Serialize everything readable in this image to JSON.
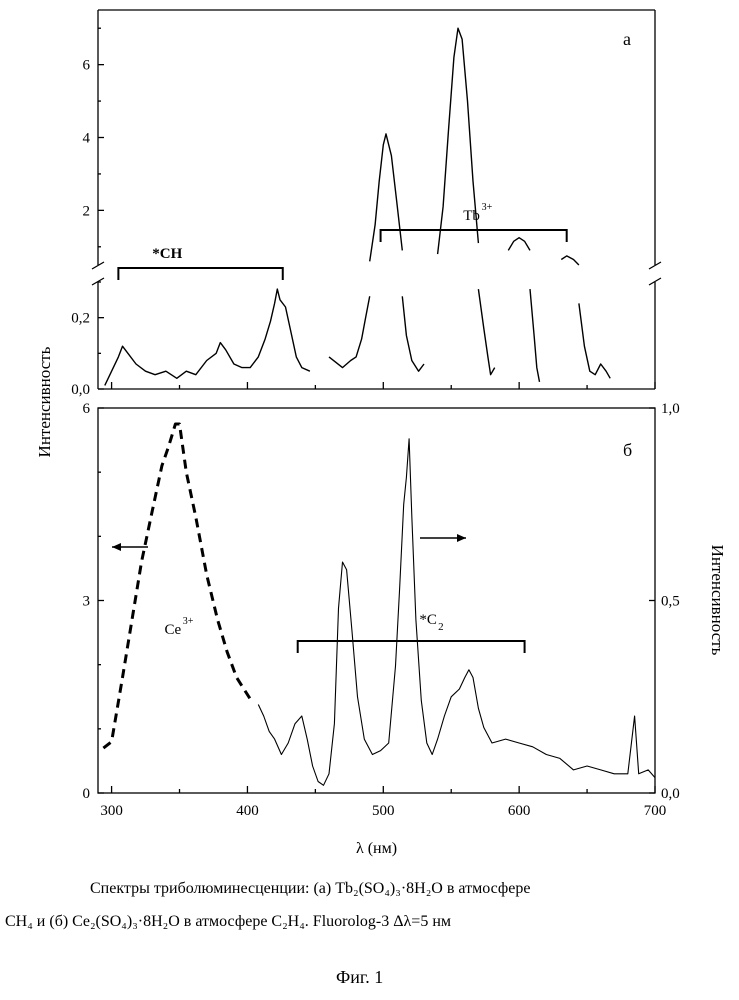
{
  "chart_data": [
    {
      "type": "line",
      "panel_label": "а",
      "xlim": [
        290,
        700
      ],
      "y_axis_break": true,
      "y_lower_range": [
        0.0,
        0.3
      ],
      "y_upper_range": [
        0.5,
        7.5
      ],
      "y_lower_ticks": [
        "0,0",
        "0,2"
      ],
      "y_upper_ticks": [
        "2",
        "4",
        "6"
      ],
      "series": [
        {
          "style": "solid",
          "segments": [
            [
              [
                295,
                0.01
              ],
              [
                300,
                0.05
              ],
              [
                305,
                0.09
              ],
              [
                308,
                0.12
              ],
              [
                312,
                0.1
              ],
              [
                318,
                0.07
              ],
              [
                325,
                0.05
              ],
              [
                332,
                0.04
              ],
              [
                340,
                0.05
              ],
              [
                348,
                0.03
              ],
              [
                355,
                0.05
              ],
              [
                362,
                0.04
              ],
              [
                370,
                0.08
              ],
              [
                377,
                0.1
              ],
              [
                380,
                0.13
              ],
              [
                384,
                0.11
              ],
              [
                390,
                0.07
              ],
              [
                396,
                0.06
              ],
              [
                402,
                0.06
              ],
              [
                408,
                0.09
              ],
              [
                413,
                0.14
              ],
              [
                417,
                0.19
              ],
              [
                420,
                0.24
              ],
              [
                422,
                0.28
              ],
              [
                424,
                0.25
              ],
              [
                428,
                0.23
              ],
              [
                432,
                0.16
              ],
              [
                436,
                0.09
              ],
              [
                440,
                0.06
              ],
              [
                446,
                0.05
              ]
            ],
            [
              [
                460,
                0.09
              ],
              [
                470,
                0.06
              ],
              [
                476,
                0.08
              ],
              [
                480,
                0.09
              ],
              [
                484,
                0.14
              ],
              [
                487,
                0.2
              ],
              [
                490,
                0.26
              ]
            ],
            [
              [
                490,
                0.6
              ],
              [
                494,
                1.6
              ],
              [
                497,
                2.8
              ],
              [
                500,
                3.8
              ],
              [
                502,
                4.1
              ],
              [
                506,
                3.5
              ],
              [
                510,
                2.2
              ],
              [
                514,
                0.9
              ]
            ],
            [
              [
                514,
                0.26
              ],
              [
                517,
                0.15
              ],
              [
                521,
                0.08
              ],
              [
                526,
                0.05
              ],
              [
                530,
                0.07
              ]
            ],
            [
              [
                540,
                0.8
              ],
              [
                544,
                2.1
              ],
              [
                548,
                4.2
              ],
              [
                552,
                6.2
              ],
              [
                555,
                7.0
              ],
              [
                558,
                6.7
              ],
              [
                562,
                5.0
              ],
              [
                566,
                2.8
              ],
              [
                570,
                1.1
              ]
            ],
            [
              [
                570,
                0.28
              ],
              [
                574,
                0.17
              ],
              [
                577,
                0.09
              ],
              [
                579,
                0.04
              ],
              [
                582,
                0.06
              ]
            ],
            [
              [
                592,
                0.9
              ],
              [
                596,
                1.15
              ],
              [
                600,
                1.25
              ],
              [
                604,
                1.15
              ],
              [
                608,
                0.9
              ]
            ],
            [
              [
                608,
                0.28
              ],
              [
                611,
                0.15
              ],
              [
                613,
                0.06
              ],
              [
                615,
                0.02
              ]
            ],
            [
              [
                631,
                0.65
              ],
              [
                635,
                0.75
              ],
              [
                640,
                0.65
              ],
              [
                644,
                0.35
              ]
            ],
            [
              [
                644,
                0.24
              ],
              [
                648,
                0.12
              ],
              [
                652,
                0.05
              ],
              [
                656,
                0.04
              ],
              [
                660,
                0.07
              ],
              [
                664,
                0.05
              ],
              [
                667,
                0.03
              ]
            ]
          ]
        }
      ],
      "annotations": [
        {
          "label_main": "*CH",
          "range": [
            305,
            426
          ]
        },
        {
          "label_main": "Tb",
          "label_sup": "3+",
          "range": [
            498,
            635
          ]
        }
      ]
    },
    {
      "type": "line",
      "panel_label": "б",
      "xlim": [
        290,
        700
      ],
      "xticks": [
        300,
        400,
        500,
        600,
        700
      ],
      "xlabel": "λ (нм)",
      "ylabel": "Интенсивность",
      "ylim_left": [
        0,
        6
      ],
      "yticks_left": [
        "0",
        "3",
        "6"
      ],
      "ylim_right": [
        0.0,
        1.0
      ],
      "yticks_right": [
        "0,0",
        "0,5",
        "1,0"
      ],
      "y2label": "Интенсивность",
      "series": [
        {
          "name": "Ce3+",
          "style": "dashed",
          "axis": "left",
          "points": [
            [
              294,
              0.7
            ],
            [
              300,
              0.8
            ],
            [
              308,
              1.8
            ],
            [
              315,
              2.7
            ],
            [
              322,
              3.6
            ],
            [
              330,
              4.4
            ],
            [
              337,
              5.1
            ],
            [
              342,
              5.4
            ],
            [
              347,
              5.75
            ],
            [
              350,
              5.75
            ],
            [
              355,
              5.0
            ],
            [
              362,
              4.3
            ],
            [
              370,
              3.4
            ],
            [
              378,
              2.7
            ],
            [
              385,
              2.2
            ],
            [
              392,
              1.8
            ],
            [
              398,
              1.6
            ],
            [
              404,
              1.4
            ]
          ]
        },
        {
          "name": "",
          "style": "solid",
          "axis": "right",
          "points": [
            [
              408,
              0.23
            ],
            [
              412,
              0.2
            ],
            [
              416,
              0.16
            ],
            [
              420,
              0.14
            ],
            [
              425,
              0.1
            ],
            [
              430,
              0.13
            ],
            [
              435,
              0.18
            ],
            [
              440,
              0.2
            ],
            [
              444,
              0.14
            ],
            [
              448,
              0.07
            ],
            [
              452,
              0.03
            ],
            [
              456,
              0.02
            ],
            [
              460,
              0.05
            ],
            [
              464,
              0.18
            ],
            [
              467,
              0.48
            ],
            [
              470,
              0.6
            ],
            [
              473,
              0.58
            ],
            [
              477,
              0.42
            ],
            [
              481,
              0.25
            ],
            [
              486,
              0.14
            ],
            [
              492,
              0.1
            ],
            [
              498,
              0.11
            ],
            [
              504,
              0.13
            ],
            [
              509,
              0.33
            ],
            [
              512,
              0.53
            ],
            [
              515,
              0.75
            ],
            [
              517,
              0.82
            ],
            [
              519,
              0.92
            ],
            [
              521,
              0.72
            ],
            [
              524,
              0.45
            ],
            [
              528,
              0.24
            ],
            [
              532,
              0.13
            ],
            [
              536,
              0.1
            ],
            [
              540,
              0.14
            ],
            [
              545,
              0.2
            ],
            [
              550,
              0.25
            ],
            [
              556,
              0.27
            ],
            [
              560,
              0.3
            ],
            [
              563,
              0.32
            ],
            [
              566,
              0.3
            ],
            [
              570,
              0.22
            ],
            [
              574,
              0.17
            ],
            [
              580,
              0.13
            ],
            [
              590,
              0.14
            ],
            [
              600,
              0.13
            ],
            [
              610,
              0.12
            ],
            [
              620,
              0.1
            ],
            [
              630,
              0.09
            ],
            [
              640,
              0.06
            ],
            [
              650,
              0.07
            ],
            [
              660,
              0.06
            ],
            [
              670,
              0.05
            ],
            [
              680,
              0.05
            ],
            [
              685,
              0.2
            ],
            [
              688,
              0.05
            ],
            [
              695,
              0.06
            ],
            [
              700,
              0.04
            ]
          ]
        }
      ],
      "annotations": [
        {
          "label_main": "Ce",
          "label_sup": "3+"
        },
        {
          "label_main": "*C",
          "label_sub": "2",
          "range": [
            437,
            604
          ]
        }
      ]
    }
  ],
  "caption": {
    "line1": "Спектры триболюминесценции: (а) Tb₂(SO₄)₃·8H₂O в атмосфере",
    "line2": "CH₄ и (б) Ce₂(SO₄)₃·8H₂O в атмосфере C₂H₄. Fluorolog-3 Δλ=5 нм",
    "figure_label": "Фиг. 1"
  }
}
